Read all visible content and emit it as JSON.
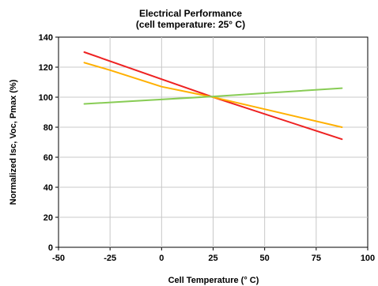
{
  "chart_data": {
    "type": "line",
    "title": "Electrical Performance",
    "subtitle": "(cell temperature: 25° C)",
    "xlabel": "Cell Temperature (° C)",
    "ylabel": "Normalized Isc, Voc, Pmax (%)",
    "xlim": [
      -50,
      100
    ],
    "ylim": [
      0,
      140
    ],
    "xticks": [
      -50,
      -25,
      0,
      25,
      50,
      75,
      100
    ],
    "yticks": [
      0,
      20,
      40,
      60,
      80,
      100,
      120,
      140
    ],
    "grid": true,
    "series": [
      {
        "color": "#ee2222",
        "x": [
          -37.5,
          25,
          87.5
        ],
        "y": [
          130,
          100,
          72
        ]
      },
      {
        "color": "#ffb000",
        "x": [
          -37.5,
          -25,
          0,
          25,
          50,
          87.5
        ],
        "y": [
          123,
          118,
          107,
          100,
          92,
          80
        ]
      },
      {
        "color": "#88cc55",
        "x": [
          -37.5,
          25,
          87.5
        ],
        "y": [
          95.5,
          100.5,
          106
        ]
      }
    ]
  }
}
